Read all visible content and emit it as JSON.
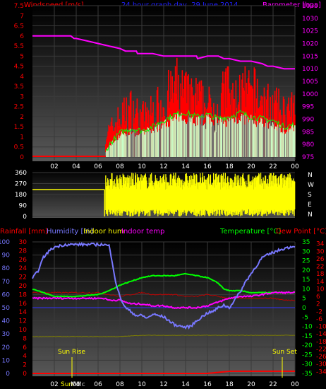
{
  "header": {
    "left": "Windspeed [m/s]",
    "center": "24 hour graph day, 29 June 2014",
    "right": "Barometer [hpa]"
  },
  "colors": {
    "wind_gust": "#ff0000",
    "wind_avg": "#00ff00",
    "wind_light": "#c8ffc8",
    "wind_calm": "#707070",
    "barometer": "#ff00ff",
    "direction": "#ffff00",
    "rainfall": "#ff0000",
    "humidity": "#7878ff",
    "indoor_hum": "#ffff00",
    "indoor_temp": "#ff00ff",
    "temperature": "#00ff00",
    "dew_point": "#ff0000",
    "solar_line": "#808000"
  },
  "bottom_header": {
    "rainfall": "Rainfall [mm]",
    "humidity": "Humidity [%]",
    "indoor_hum": "Indoor hum",
    "indoor_temp": "Indoor temp",
    "temperature": "Temperature [°C]",
    "dew_point": "Dew Point [°C]"
  },
  "events": {
    "sunrise": "Sun Rise",
    "sunset": "Sun Set",
    "overlap_1": "Sun",
    "overlap_2": "Mo",
    "overlap_3": "Mc"
  },
  "chart_data": [
    {
      "type": "line",
      "title": "24 hour graph day, 29 June 2014",
      "xlabel": "",
      "x_ticks": [
        "02",
        "04",
        "06",
        "08",
        "10",
        "12",
        "14",
        "16",
        "18",
        "20",
        "22",
        "00"
      ],
      "y_left": {
        "label": "Windspeed [m/s]",
        "ticks": [
          0,
          0.5,
          1,
          1.5,
          2,
          2.5,
          3,
          3.5,
          4,
          4.5,
          5,
          5.5,
          6,
          6.5,
          7,
          7.5
        ],
        "range": [
          0,
          7.5
        ]
      },
      "y_right": {
        "label": "Barometer [hpa]",
        "ticks": [
          975,
          980,
          985,
          990,
          995,
          1000,
          1005,
          1010,
          1015,
          1020,
          1025,
          1030,
          1035
        ],
        "range": [
          975,
          1035
        ]
      },
      "series": [
        {
          "name": "Barometer [hpa]",
          "axis": "right",
          "x": [
            0,
            3.5,
            3.8,
            4,
            5,
            6,
            7,
            8,
            8.5,
            9.5,
            9.6,
            10,
            11,
            12,
            15,
            15.1,
            16,
            17,
            17.5,
            18,
            19,
            20,
            21,
            21.5,
            22,
            23,
            24
          ],
          "y": [
            1023,
            1023,
            1022,
            1022,
            1021,
            1020,
            1019,
            1018,
            1017,
            1017,
            1016,
            1016,
            1016,
            1015,
            1015,
            1014,
            1015,
            1015,
            1014,
            1014,
            1013,
            1013,
            1012,
            1011,
            1011,
            1010,
            1010
          ]
        },
        {
          "name": "Wind average",
          "axis": "left",
          "x": [
            0,
            6.5,
            7,
            8,
            9,
            10,
            11,
            12,
            13,
            14,
            15,
            16,
            17,
            18,
            19,
            20,
            21,
            22,
            23,
            24
          ],
          "y": [
            0,
            0,
            0.6,
            1.2,
            1.4,
            1.3,
            1.5,
            1.8,
            2.1,
            2.2,
            2.0,
            2.1,
            1.9,
            2.0,
            2.2,
            2.0,
            1.9,
            1.8,
            1.5,
            1.6
          ]
        },
        {
          "name": "Wind gust peak",
          "axis": "left",
          "x": [
            7,
            8,
            9,
            10,
            11,
            12,
            12.8,
            13.2,
            14,
            14.5,
            15,
            16,
            17,
            17.8,
            18.3,
            19,
            20,
            20.5,
            21,
            22,
            23,
            24
          ],
          "y": [
            1.8,
            2.8,
            3.5,
            2.8,
            3.2,
            4.0,
            4.6,
            5.0,
            4.5,
            4.0,
            4.2,
            3.6,
            3.4,
            5.2,
            3.8,
            4.6,
            4.4,
            4.6,
            3.9,
            3.6,
            3.2,
            3.3
          ]
        }
      ]
    },
    {
      "type": "bar",
      "title": "",
      "x_ticks": [
        "02",
        "04",
        "06",
        "08",
        "10",
        "12",
        "14",
        "16",
        "18",
        "20",
        "22",
        "00"
      ],
      "y_ticks": [
        0,
        90,
        180,
        270,
        360
      ],
      "y_range": [
        0,
        360
      ],
      "direction_labels": [
        "N",
        "W",
        "S",
        "E",
        "N"
      ],
      "series": [
        {
          "name": "Wind direction",
          "x": [
            0,
            6.5,
            6.6,
            24
          ],
          "y": [
            220,
            220,
            300,
            300
          ]
        }
      ]
    },
    {
      "type": "line",
      "title": "",
      "x_ticks": [
        "02",
        "04",
        "06",
        "08",
        "10",
        "12",
        "14",
        "16",
        "18",
        "20",
        "22",
        "00"
      ],
      "axes": {
        "humidity": {
          "label": "Humidity [%]",
          "ticks": [
            0,
            10,
            20,
            30,
            40,
            50,
            60,
            70,
            80,
            90,
            100
          ],
          "range": [
            0,
            100
          ]
        },
        "rainfall": {
          "label": "Rainfall [mm]",
          "ticks": [
            0,
            2,
            4,
            6,
            8,
            10,
            12,
            14,
            16,
            18,
            20,
            22,
            24,
            26,
            28,
            30
          ],
          "range": [
            0,
            30
          ]
        },
        "temperature": {
          "label": "Temperature [°C]",
          "ticks": [
            -35,
            -30,
            -25,
            -20,
            -15,
            -10,
            -5,
            0,
            5,
            10,
            15,
            20,
            25,
            30,
            35
          ],
          "range": [
            -35,
            35
          ]
        },
        "dew_point": {
          "label": "Dew Point [°C]",
          "ticks": [
            -34,
            -32,
            -30,
            -28,
            -26,
            -24,
            -22,
            -20,
            -18,
            -16,
            -14,
            -12,
            -10,
            -8,
            -6,
            -4,
            -2,
            0,
            2,
            4,
            6,
            8,
            10,
            12,
            14,
            16,
            18,
            20,
            22,
            24,
            26,
            28,
            30,
            32,
            34
          ],
          "range": [
            -35,
            35
          ]
        }
      },
      "series": [
        {
          "name": "Humidity [%]",
          "axis": "humidity",
          "x": [
            0,
            0.5,
            1,
            1.5,
            2,
            3,
            4,
            5,
            6,
            6.5,
            7,
            7.3,
            7.6,
            8,
            8.5,
            9,
            9.5,
            10,
            10.5,
            11,
            11.5,
            12,
            12.5,
            13,
            13.5,
            14,
            14.5,
            15,
            15.5,
            16,
            16.5,
            17,
            17.5,
            18,
            18.5,
            19,
            19.5,
            20,
            20.5,
            21,
            22,
            23,
            24
          ],
          "y": [
            72,
            78,
            88,
            93,
            96,
            98,
            98,
            98,
            98,
            98,
            97,
            85,
            70,
            58,
            50,
            47,
            44,
            44,
            42,
            45,
            44,
            43,
            40,
            37,
            36,
            35,
            36,
            40,
            43,
            46,
            47,
            50,
            52,
            50,
            56,
            62,
            70,
            76,
            82,
            88,
            92,
            95,
            97
          ]
        },
        {
          "name": "Temperature [°C]",
          "axis": "temperature",
          "x": [
            0,
            1,
            2,
            4,
            6,
            7,
            8,
            9,
            10,
            11,
            12,
            13,
            14,
            15,
            16,
            17,
            17.5,
            18,
            19,
            20,
            21,
            22,
            23,
            24
          ],
          "y": [
            10,
            8,
            6,
            6,
            7,
            9,
            12,
            14,
            16,
            17,
            17,
            17,
            18,
            17,
            16,
            13,
            10,
            9,
            9,
            8,
            8,
            8,
            8,
            8
          ]
        },
        {
          "name": "Indoor temp",
          "axis": "temperature",
          "x": [
            0,
            2,
            4,
            6,
            6.5,
            7,
            8,
            8.5,
            9,
            10,
            11,
            12,
            13,
            14,
            15,
            16,
            17,
            18,
            19,
            20,
            21,
            22,
            23,
            24
          ],
          "y": [
            5,
            5,
            5,
            5,
            5,
            4,
            4,
            3,
            2,
            2,
            1,
            1,
            0,
            0,
            0,
            1,
            3,
            5,
            6,
            6,
            7,
            8,
            8,
            8
          ]
        },
        {
          "name": "Dew Point [°C]",
          "axis": "dew_point",
          "x": [
            0,
            2,
            4,
            6,
            7,
            8,
            9,
            10,
            11,
            12,
            13,
            14,
            15,
            16,
            17,
            18,
            19,
            20,
            21,
            22,
            23,
            24
          ],
          "y": [
            8,
            8,
            8,
            8,
            7,
            6,
            7,
            8,
            7,
            7,
            7,
            6,
            6,
            7,
            6,
            5,
            5,
            5,
            5,
            5,
            4,
            4
          ]
        },
        {
          "name": "Indoor hum",
          "axis": "humidity",
          "x": [
            0,
            2,
            4,
            6,
            8,
            10,
            12,
            14,
            16,
            18,
            20,
            22,
            24
          ],
          "y": [
            28,
            28,
            28,
            28,
            28,
            29,
            29,
            29,
            29,
            29,
            29,
            29,
            29
          ]
        },
        {
          "name": "Rainfall [mm]",
          "axis": "rainfall",
          "x": [
            0,
            6,
            8,
            10,
            12,
            14,
            16,
            18,
            20,
            22,
            24
          ],
          "y": [
            0,
            0,
            0,
            0,
            0,
            0,
            0,
            0.5,
            0.5,
            0.5,
            0.5
          ]
        }
      ],
      "reference_lines": [
        {
          "axis": "humidity",
          "value": 50,
          "color": "#3030ff"
        }
      ]
    }
  ]
}
